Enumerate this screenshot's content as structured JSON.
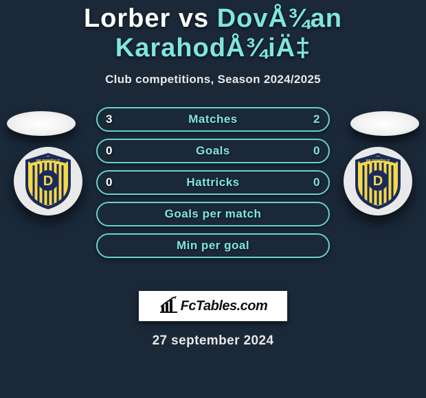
{
  "colors": {
    "bg": "#1a2838",
    "p1": "#ffffff",
    "p2": "#7fe6e0",
    "row_border": "#66d3cc",
    "row_text": "#7fe6e0",
    "row_left_text": "#ffffff",
    "crest_yellow": "#f3d84a",
    "crest_blue": "#1b2a5b"
  },
  "title": {
    "player1": "Lorber",
    "vs": "vs",
    "player2": "DovÅ¾an KarahodÅ¾iÄ‡"
  },
  "subtitle": "Club competitions, Season 2024/2025",
  "rows": [
    {
      "left": "3",
      "label": "Matches",
      "right": "2",
      "has_values": true
    },
    {
      "left": "0",
      "label": "Goals",
      "right": "0",
      "has_values": true
    },
    {
      "left": "0",
      "label": "Hattricks",
      "right": "0",
      "has_values": true
    },
    {
      "left": "",
      "label": "Goals per match",
      "right": "",
      "has_values": false
    },
    {
      "left": "",
      "label": "Min per goal",
      "right": "",
      "has_values": false
    }
  ],
  "attribution": "FcTables.com",
  "date": "27 september 2024",
  "crest_text_top": "NK DOMŽALE"
}
